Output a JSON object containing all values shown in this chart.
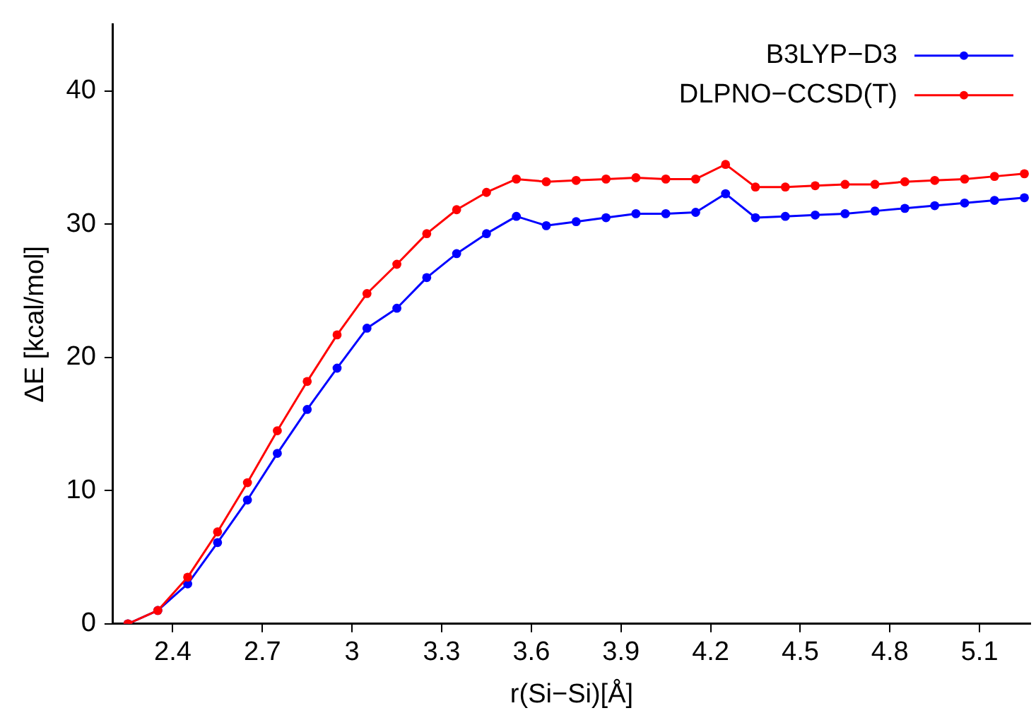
{
  "chart_data": {
    "type": "line",
    "xlabel": "r(Si−Si)[Å]",
    "ylabel": "ΔE [kcal/mol]",
    "x": [
      2.25,
      2.35,
      2.45,
      2.55,
      2.65,
      2.75,
      2.85,
      2.95,
      3.05,
      3.15,
      3.25,
      3.35,
      3.45,
      3.55,
      3.65,
      3.75,
      3.85,
      3.95,
      4.05,
      4.15,
      4.25,
      4.35,
      4.45,
      4.55,
      4.65,
      4.75,
      4.85,
      4.95,
      5.05,
      5.15,
      5.25
    ],
    "series": [
      {
        "name": "B3LYP−D3",
        "color": "#0000ff",
        "values": [
          0,
          1.0,
          3.0,
          6.1,
          9.3,
          12.8,
          16.1,
          19.2,
          22.2,
          23.7,
          26.0,
          27.8,
          29.3,
          30.6,
          29.9,
          30.2,
          30.5,
          30.8,
          30.8,
          30.9,
          32.3,
          30.5,
          30.6,
          30.7,
          30.8,
          31.0,
          31.2,
          31.4,
          31.6,
          31.8,
          32.0
        ]
      },
      {
        "name": "DLPNO−CCSD(T)",
        "color": "#ff0000",
        "values": [
          0,
          1.0,
          3.5,
          6.9,
          10.6,
          14.5,
          18.2,
          21.7,
          24.8,
          27.0,
          29.3,
          31.1,
          32.4,
          33.4,
          33.2,
          33.3,
          33.4,
          33.5,
          33.4,
          33.4,
          34.5,
          32.8,
          32.8,
          32.9,
          33.0,
          33.0,
          33.2,
          33.3,
          33.4,
          33.6,
          33.8
        ]
      }
    ],
    "xlim": [
      2.2,
      5.27
    ],
    "xticks": [
      2.4,
      2.7,
      3,
      3.3,
      3.6,
      3.9,
      4.2,
      4.5,
      4.8,
      5.1
    ],
    "ylim": [
      0,
      45
    ],
    "yticks": [
      0,
      10,
      20,
      30,
      40
    ],
    "grid": false,
    "legend": "top right",
    "marker": "circle",
    "line_style": "solid"
  }
}
